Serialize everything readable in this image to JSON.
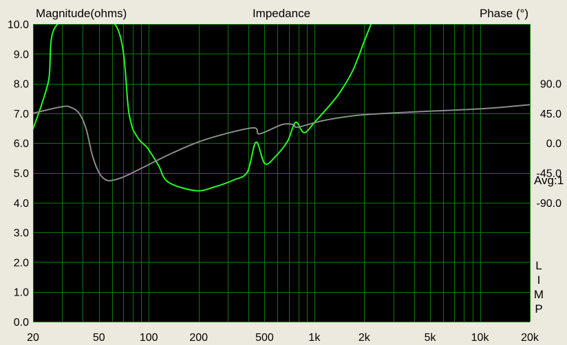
{
  "chart_data": {
    "type": "line",
    "title": "Impedance",
    "ylabel": "Magnitude(ohms)",
    "y2label": "Phase (°)",
    "ylim": [
      0,
      10
    ],
    "y2lim": [
      -270,
      180
    ],
    "xlim": [
      20,
      20000
    ],
    "xscale": "log",
    "grid": true,
    "ytick_labels": [
      "0.0",
      "1.0",
      "2.0",
      "3.0",
      "4.0",
      "5.0",
      "6.0",
      "7.0",
      "8.0",
      "9.0",
      "10.0"
    ],
    "y2tick_labels": [
      "90.0",
      "45.0",
      "0.0",
      "-45.0",
      "-90.0"
    ],
    "y2tick_values": [
      90,
      45,
      0,
      -45,
      -90
    ],
    "xtick_values": [
      20,
      50,
      100,
      200,
      500,
      1000,
      2000,
      5000,
      10000,
      20000
    ],
    "xtick_labels": [
      "20",
      "50",
      "100",
      "200",
      "500",
      "1k",
      "2k",
      "5k",
      "10k",
      "20k"
    ],
    "annotation": "Avg:1",
    "program_label": [
      "L",
      "I",
      "M",
      "P"
    ],
    "background_color": "#000000",
    "grid_color": "#0b7a0b",
    "series": [
      {
        "axis": "left",
        "color": "#22ff22",
        "x": [
          20,
          24.7,
          28.2,
          62.4,
          76.2,
          85.6,
          98,
          114,
          131,
          193,
          250,
          326,
          394,
          444,
          502,
          580,
          690,
          770,
          868,
          1010,
          1370,
          1660,
          1830,
          2000,
          2200
        ],
        "y": [
          6.47,
          8.04,
          10.0,
          10.0,
          6.95,
          6.19,
          5.84,
          5.27,
          4.69,
          4.4,
          4.53,
          4.76,
          5.03,
          6.03,
          5.31,
          5.54,
          6.07,
          6.7,
          6.35,
          6.72,
          7.57,
          8.31,
          8.85,
          9.42,
          10.0
        ]
      },
      {
        "axis": "right",
        "color": "#8c8c8c",
        "x": [
          20,
          29.9,
          33.8,
          38,
          41.8,
          45.8,
          50.4,
          55.5,
          61,
          70.6,
          85.6,
          138.9,
          224,
          421,
          466,
          638,
          750,
          792,
          1130,
          1830,
          3900,
          10400,
          20000
        ],
        "y": [
          45,
          55,
          54,
          45,
          22,
          -20,
          -46,
          -56,
          -56,
          -51,
          -41,
          -15,
          6,
          23,
          14,
          28,
          28,
          24,
          34,
          42,
          47,
          52,
          58
        ]
      }
    ]
  }
}
